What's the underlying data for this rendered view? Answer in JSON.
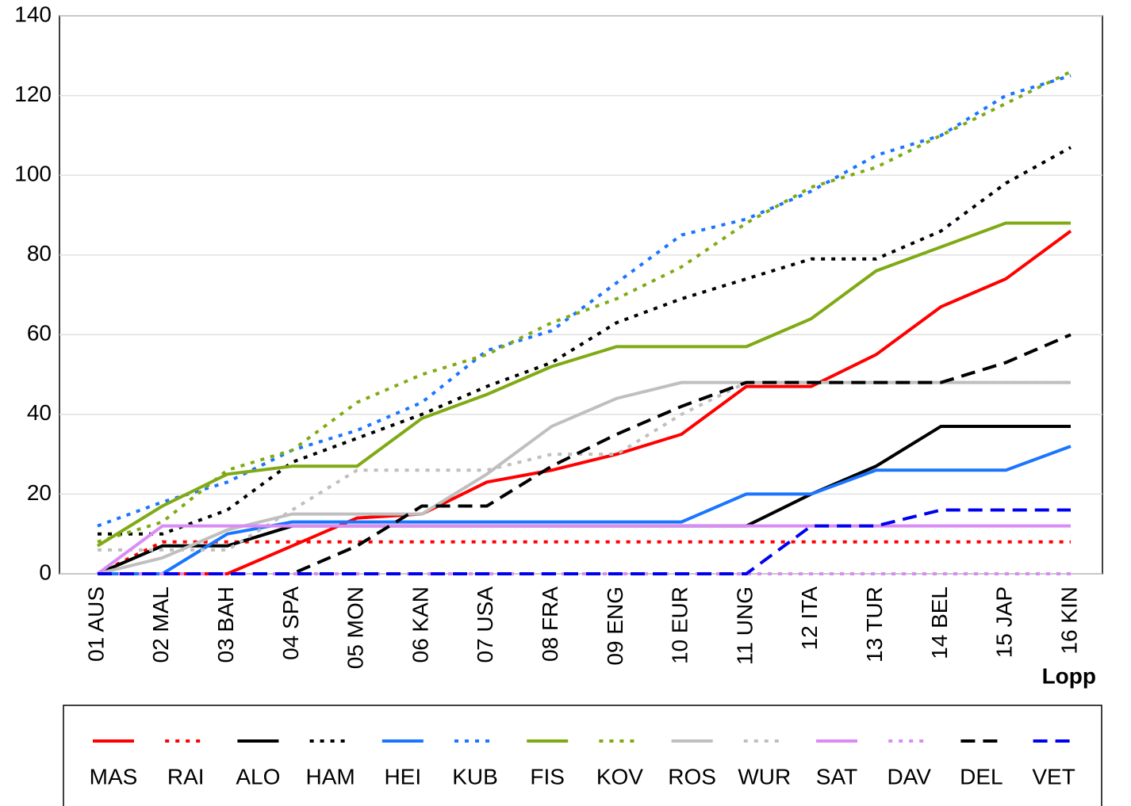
{
  "chart_data": {
    "type": "line",
    "x_label": "Lopp",
    "categories": [
      "01 AUS",
      "02 MAL",
      "03 BAH",
      "04 SPA",
      "05 MON",
      "06 KAN",
      "07 USA",
      "08 FRA",
      "09 ENG",
      "10 EUR",
      "11 UNG",
      "12 ITA",
      "13 TUR",
      "14 BEL",
      "15 JAP",
      "16 KIN"
    ],
    "ylim": [
      0,
      140
    ],
    "yticks": [
      0,
      20,
      40,
      60,
      80,
      100,
      120,
      140
    ],
    "grid": true,
    "legend": "bottom",
    "series": [
      {
        "name": "MAS",
        "color": "#ff0000",
        "dash": "solid",
        "values": [
          0,
          0,
          0,
          7,
          14,
          15,
          23,
          26,
          30,
          35,
          47,
          47,
          55,
          67,
          74,
          86
        ]
      },
      {
        "name": "RAI",
        "color": "#ff0000",
        "dash": "dotted",
        "values": [
          0,
          8,
          8,
          8,
          8,
          8,
          8,
          8,
          8,
          8,
          8,
          8,
          8,
          8,
          8,
          8
        ]
      },
      {
        "name": "ALO",
        "color": "#000000",
        "dash": "solid",
        "values": [
          0,
          7,
          7,
          12,
          12,
          12,
          12,
          12,
          12,
          12,
          12,
          20,
          27,
          37,
          37,
          37
        ]
      },
      {
        "name": "HAM",
        "color": "#000000",
        "dash": "dotted",
        "values": [
          10,
          10,
          16,
          28,
          34,
          40,
          47,
          53,
          63,
          69,
          74,
          79,
          79,
          86,
          98,
          107
        ]
      },
      {
        "name": "HEI",
        "color": "#1a75ff",
        "dash": "solid",
        "values": [
          0,
          0,
          10,
          13,
          13,
          13,
          13,
          13,
          13,
          13,
          20,
          20,
          26,
          26,
          26,
          32
        ]
      },
      {
        "name": "KUB",
        "color": "#1a75ff",
        "dash": "dotted",
        "values": [
          12,
          18,
          23,
          31,
          36,
          43,
          56,
          61,
          73,
          85,
          89,
          96,
          105,
          110,
          120,
          125
        ]
      },
      {
        "name": "FIS",
        "color": "#80aa14",
        "dash": "solid",
        "values": [
          7,
          17,
          25,
          27,
          27,
          39,
          45,
          52,
          57,
          57,
          57,
          64,
          76,
          82,
          88,
          88
        ]
      },
      {
        "name": "KOV",
        "color": "#80aa14",
        "dash": "dotted",
        "values": [
          8,
          13,
          26,
          31,
          43,
          50,
          55,
          63,
          69,
          77,
          88,
          97,
          102,
          110,
          118,
          126
        ]
      },
      {
        "name": "ROS",
        "color": "#bfbfbf",
        "dash": "solid",
        "values": [
          0,
          4,
          11,
          15,
          15,
          15,
          25,
          37,
          44,
          48,
          48,
          48,
          48,
          48,
          48,
          48
        ]
      },
      {
        "name": "WUR",
        "color": "#bfbfbf",
        "dash": "dotted",
        "values": [
          6,
          6,
          6,
          16,
          26,
          26,
          26,
          30,
          30,
          40,
          48,
          48,
          48,
          48,
          48,
          48
        ]
      },
      {
        "name": "SAT",
        "color": "#d98cf5",
        "dash": "solid",
        "values": [
          0,
          12,
          12,
          12,
          12,
          12,
          12,
          12,
          12,
          12,
          12,
          12,
          12,
          12,
          12,
          12
        ]
      },
      {
        "name": "DAV",
        "color": "#d98cf5",
        "dash": "dotted",
        "values": [
          0,
          0,
          0,
          0,
          0,
          0,
          0,
          0,
          0,
          0,
          0,
          0,
          0,
          0,
          0,
          0
        ]
      },
      {
        "name": "DEL",
        "color": "#000000",
        "dash": "dashed",
        "values": [
          0,
          0,
          0,
          0,
          7,
          17,
          17,
          27,
          35,
          42,
          48,
          48,
          48,
          48,
          53,
          60
        ]
      },
      {
        "name": "VET",
        "color": "#0000ee",
        "dash": "dashed",
        "values": [
          0,
          0,
          0,
          0,
          0,
          0,
          0,
          0,
          0,
          0,
          0,
          12,
          12,
          16,
          16,
          16
        ]
      }
    ]
  }
}
